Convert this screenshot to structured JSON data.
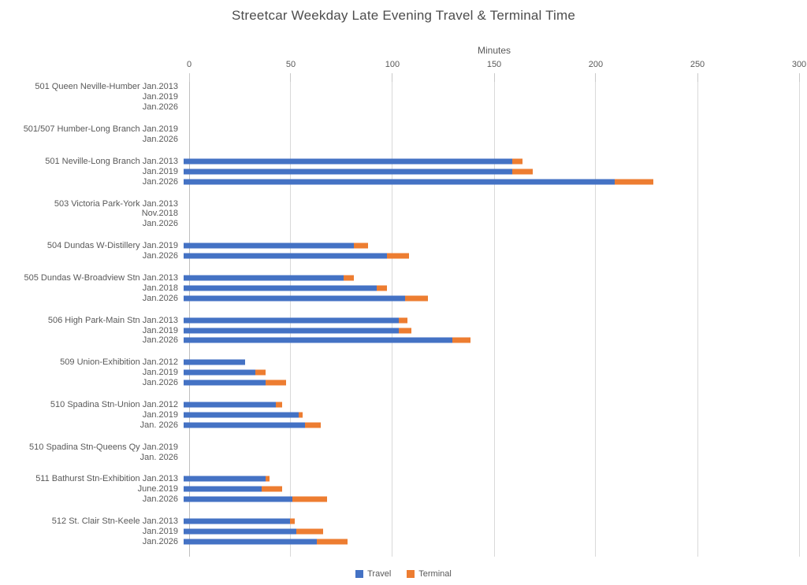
{
  "title": "Streetcar Weekday Late Evening Travel & Terminal Time",
  "chart_data": {
    "type": "bar",
    "orientation": "horizontal",
    "stacked": true,
    "title": "Streetcar Weekday Late Evening Travel & Terminal Time",
    "xlabel": "Minutes",
    "xlim": [
      0,
      300
    ],
    "xticks": [
      0,
      50,
      100,
      150,
      200,
      250,
      300
    ],
    "grid": true,
    "legend_position": "bottom",
    "legend": [
      "Travel",
      "Terminal"
    ],
    "colors": {
      "travel": "#4472C4",
      "terminal": "#ED7D31",
      "gridline": "#D9D9D9",
      "text": "#595959"
    },
    "groups": [
      {
        "route": "501 Queen Neville-Humber",
        "rows": [
          {
            "period": "Jan.2013",
            "travel": 0,
            "terminal": 0
          },
          {
            "period": "Jan.2019",
            "travel": 0,
            "terminal": 0
          },
          {
            "period": "Jan.2026",
            "travel": 0,
            "terminal": 0
          }
        ]
      },
      {
        "route": "501/507 Humber-Long Branch",
        "rows": [
          {
            "period": "Jan.2019",
            "travel": 0,
            "terminal": 0
          },
          {
            "period": "Jan.2026",
            "travel": 0,
            "terminal": 0
          }
        ]
      },
      {
        "route": "501 Neville-Long Branch",
        "rows": [
          {
            "period": "Jan.2013",
            "travel": 160,
            "terminal": 5
          },
          {
            "period": "Jan.2019",
            "travel": 160,
            "terminal": 10
          },
          {
            "period": "Jan.2026",
            "travel": 210,
            "terminal": 19
          }
        ]
      },
      {
        "route": "503 Victoria Park-York",
        "rows": [
          {
            "period": "Jan.2013",
            "travel": 0,
            "terminal": 0
          },
          {
            "period": "Nov.2018",
            "travel": 0,
            "terminal": 0
          },
          {
            "period": "Jan.2026",
            "travel": 0,
            "terminal": 0
          }
        ]
      },
      {
        "route": "504 Dundas W-Distillery",
        "rows": [
          {
            "period": "Jan.2019",
            "travel": 83,
            "terminal": 7
          },
          {
            "period": "Jan.2026",
            "travel": 99,
            "terminal": 11
          }
        ]
      },
      {
        "route": "505 Dundas W-Broadview Stn",
        "rows": [
          {
            "period": "Jan.2013",
            "travel": 78,
            "terminal": 5
          },
          {
            "period": "Jan.2018",
            "travel": 94,
            "terminal": 5
          },
          {
            "period": "Jan.2026",
            "travel": 108,
            "terminal": 11
          }
        ]
      },
      {
        "route": "506 High Park-Main Stn",
        "rows": [
          {
            "period": "Jan.2013",
            "travel": 105,
            "terminal": 4
          },
          {
            "period": "Jan.2019",
            "travel": 105,
            "terminal": 6
          },
          {
            "period": "Jan.2026",
            "travel": 131,
            "terminal": 9
          }
        ]
      },
      {
        "route": "509 Union-Exhibition",
        "rows": [
          {
            "period": "Jan.2012",
            "travel": 30,
            "terminal": 0
          },
          {
            "period": "Jan.2019",
            "travel": 35,
            "terminal": 5
          },
          {
            "period": "Jan.2026",
            "travel": 40,
            "terminal": 10
          }
        ]
      },
      {
        "route": "510 Spadina Stn-Union",
        "rows": [
          {
            "period": "Jan.2012",
            "travel": 45,
            "terminal": 3
          },
          {
            "period": "Jan.2019",
            "travel": 56,
            "terminal": 2
          },
          {
            "period": "Jan. 2026",
            "travel": 59,
            "terminal": 8
          }
        ]
      },
      {
        "route": "510 Spadina Stn-Queens Qy",
        "rows": [
          {
            "period": "Jan.2019",
            "travel": 0,
            "terminal": 0
          },
          {
            "period": "Jan. 2026",
            "travel": 0,
            "terminal": 0
          }
        ]
      },
      {
        "route": "511 Bathurst Stn-Exhibition",
        "rows": [
          {
            "period": "Jan.2013",
            "travel": 40,
            "terminal": 2
          },
          {
            "period": "June.2019",
            "travel": 38,
            "terminal": 10
          },
          {
            "period": "Jan.2026",
            "travel": 53,
            "terminal": 17
          }
        ]
      },
      {
        "route": "512 St. Clair Stn-Keele",
        "rows": [
          {
            "period": "Jan.2013",
            "travel": 52,
            "terminal": 2
          },
          {
            "period": "Jan.2019",
            "travel": 55,
            "terminal": 13
          },
          {
            "period": "Jan.2026",
            "travel": 65,
            "terminal": 15
          }
        ]
      }
    ]
  }
}
